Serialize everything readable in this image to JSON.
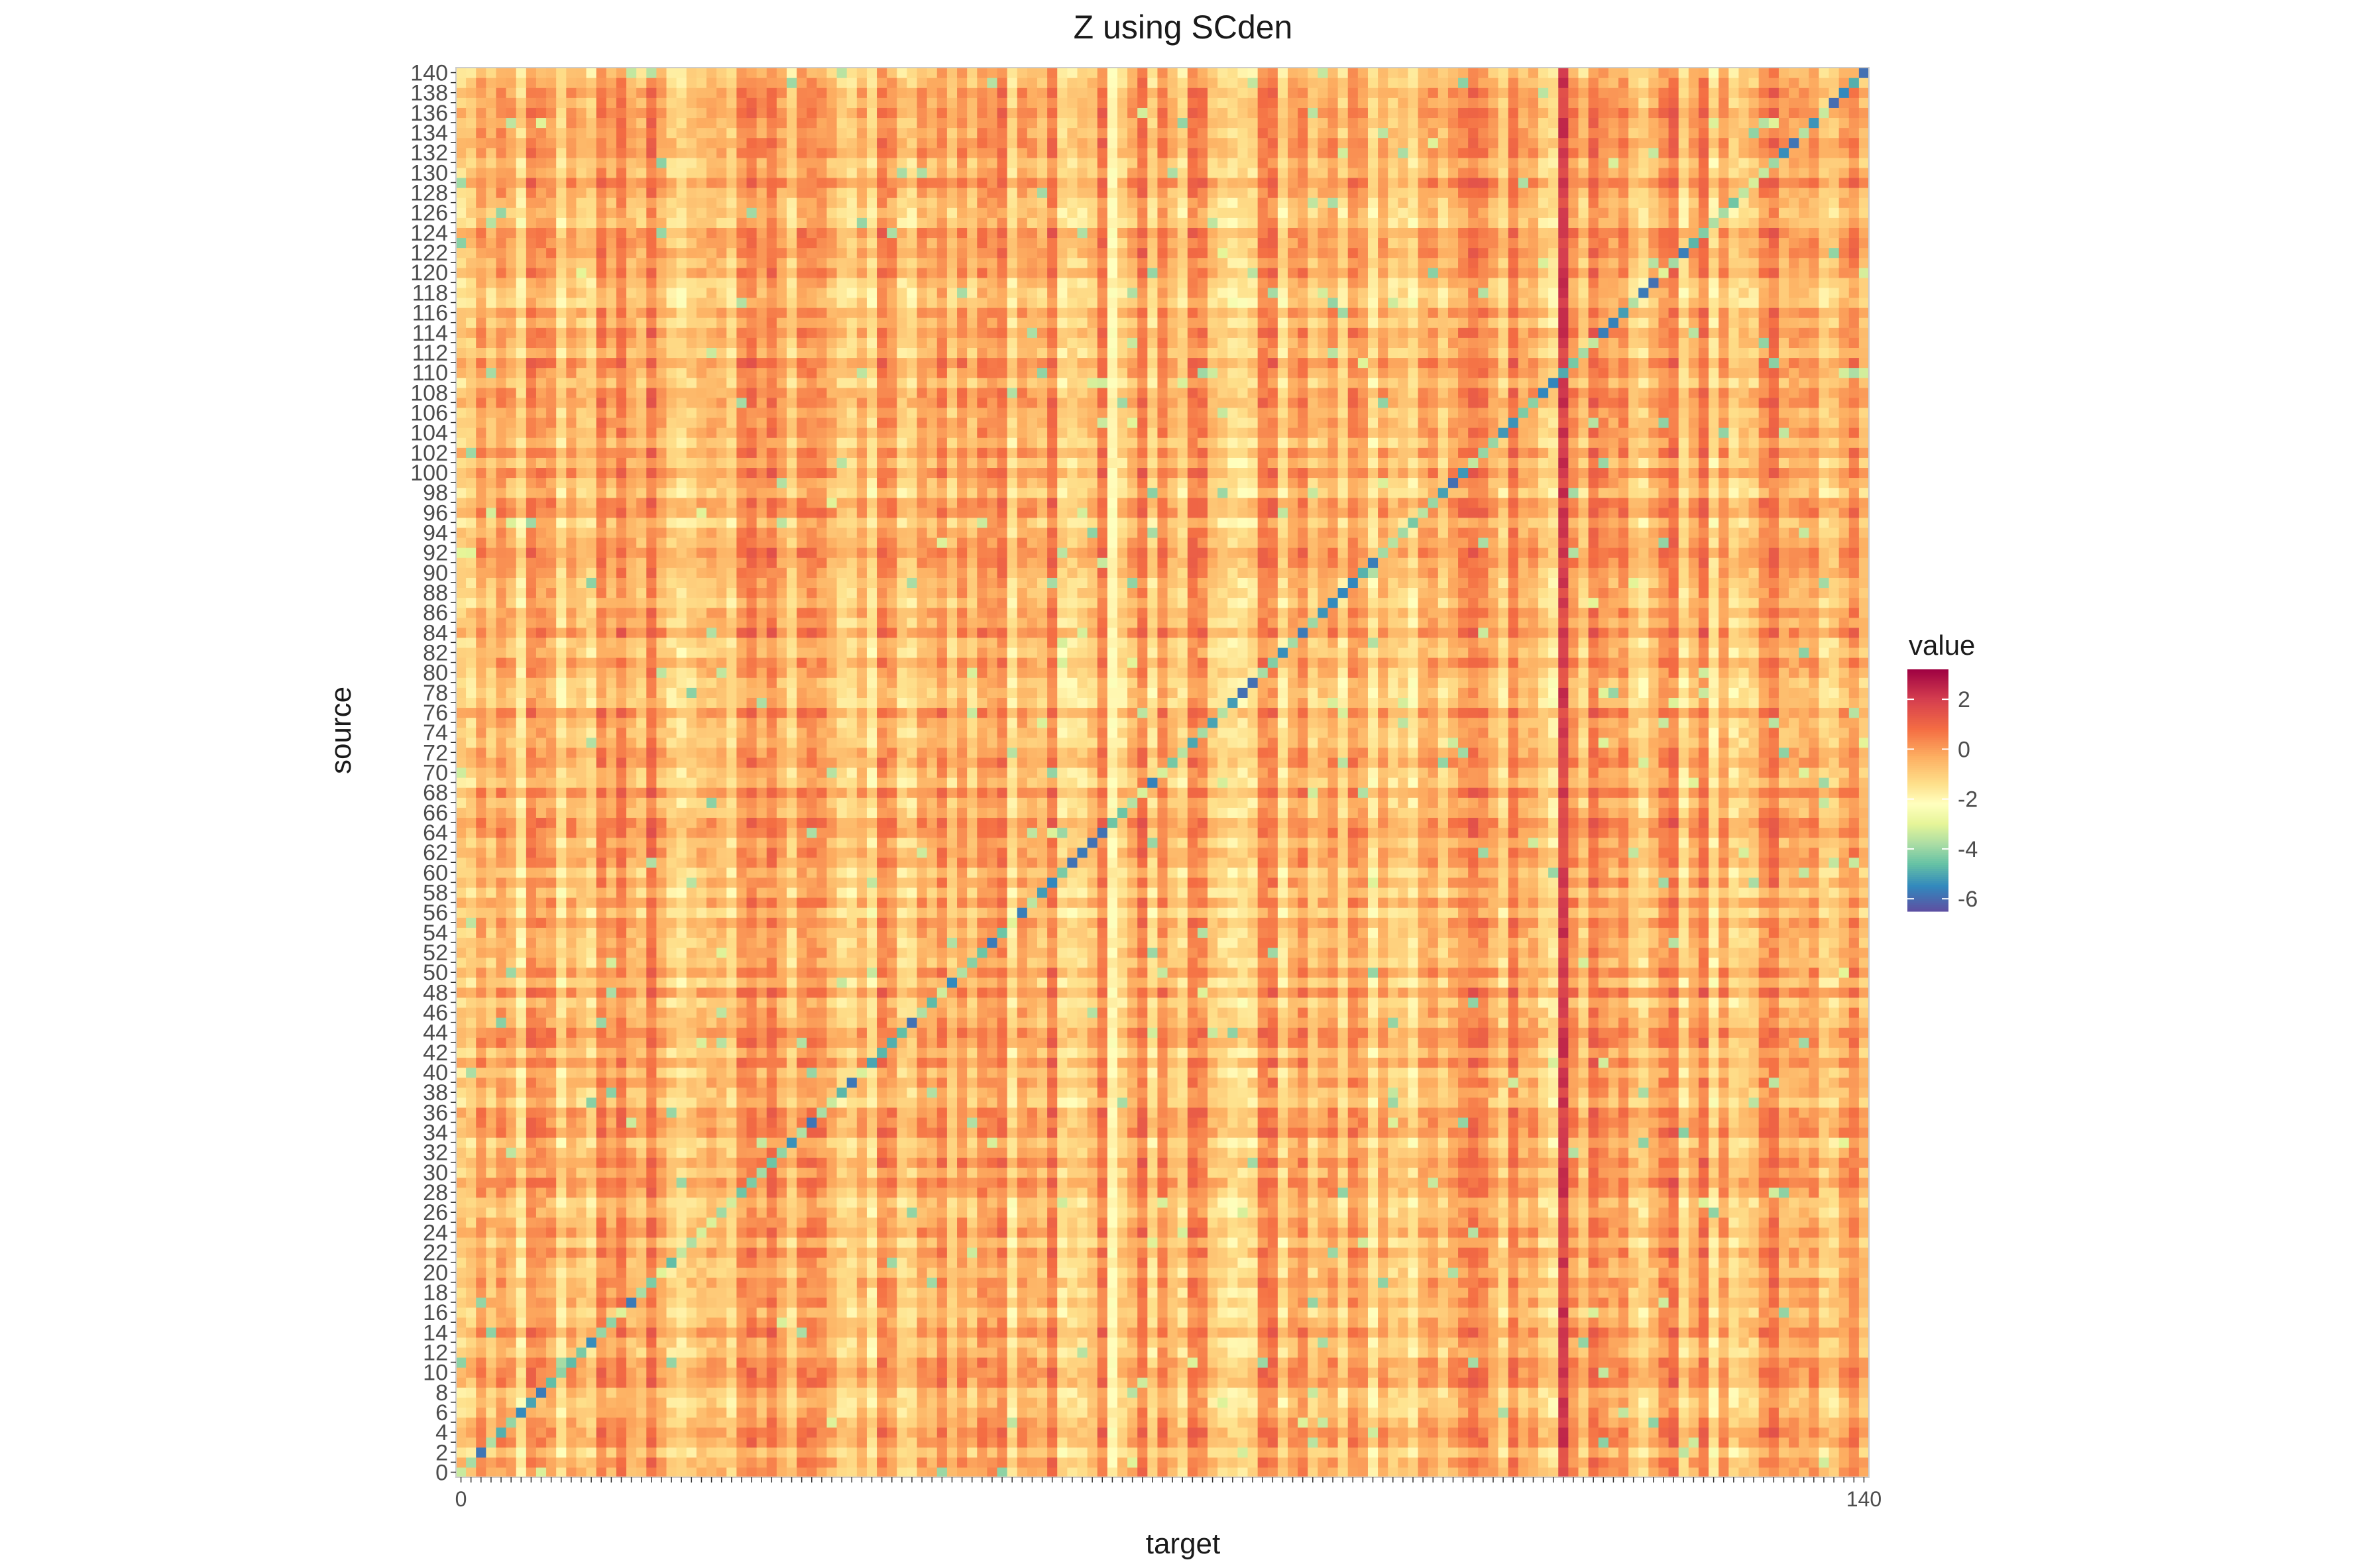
{
  "chart_data": {
    "type": "heatmap",
    "title": "Z using SCden",
    "xlabel": "target",
    "ylabel": "source",
    "x_categories_range": [
      0,
      140
    ],
    "y_categories_range": [
      0,
      140
    ],
    "y_tick_labels_visible": [
      "140",
      "138",
      "136",
      "134",
      "132",
      "130",
      "128",
      "126",
      "124",
      "122",
      "120",
      "118",
      "116",
      "114",
      "112",
      "110",
      "108",
      "106",
      "104",
      "102",
      "100",
      "98",
      "96",
      "94",
      "92",
      "90",
      "88",
      "86",
      "84",
      "82",
      "80",
      "78",
      "76",
      "74",
      "72",
      "70",
      "68",
      "66",
      "64",
      "62",
      "60",
      "58",
      "56",
      "54",
      "52",
      "50",
      "48",
      "46",
      "44",
      "42",
      "40",
      "38",
      "36",
      "34",
      "32",
      "30",
      "28",
      "26",
      "24",
      "22",
      "20",
      "18",
      "16",
      "14",
      "12",
      "10",
      "8",
      "6",
      "4",
      "2",
      "0"
    ],
    "x_tick_labels_visible": [
      "0",
      "140"
    ],
    "value_range": [
      -6.5,
      3.2
    ],
    "diagonal_value_range": [
      -6,
      -3
    ],
    "off_diagonal_typical_range": [
      -2.5,
      1.5
    ],
    "hot_column_target": 110,
    "hot_column_value": 2.5,
    "cool_column_target": 65,
    "cool_column_value": -2,
    "grid": false,
    "legend": {
      "title": "value",
      "placement": "right",
      "ticks": [
        "2",
        "0",
        "-2",
        "-4",
        "-6"
      ],
      "tick_values": [
        2,
        0,
        -2,
        -4,
        -6
      ],
      "colormap": "Spectral",
      "colormap_stops": [
        {
          "value": 3.2,
          "color": "#9e0142"
        },
        {
          "value": 2.0,
          "color": "#d53e4f"
        },
        {
          "value": 0.8,
          "color": "#f46d43"
        },
        {
          "value": -0.3,
          "color": "#fdae61"
        },
        {
          "value": -1.4,
          "color": "#fee08b"
        },
        {
          "value": -2.2,
          "color": "#ffffbf"
        },
        {
          "value": -3.0,
          "color": "#e6f598"
        },
        {
          "value": -3.8,
          "color": "#abdda4"
        },
        {
          "value": -4.6,
          "color": "#66c2a5"
        },
        {
          "value": -5.5,
          "color": "#3288bd"
        },
        {
          "value": -6.5,
          "color": "#5e4fa2"
        }
      ]
    }
  }
}
